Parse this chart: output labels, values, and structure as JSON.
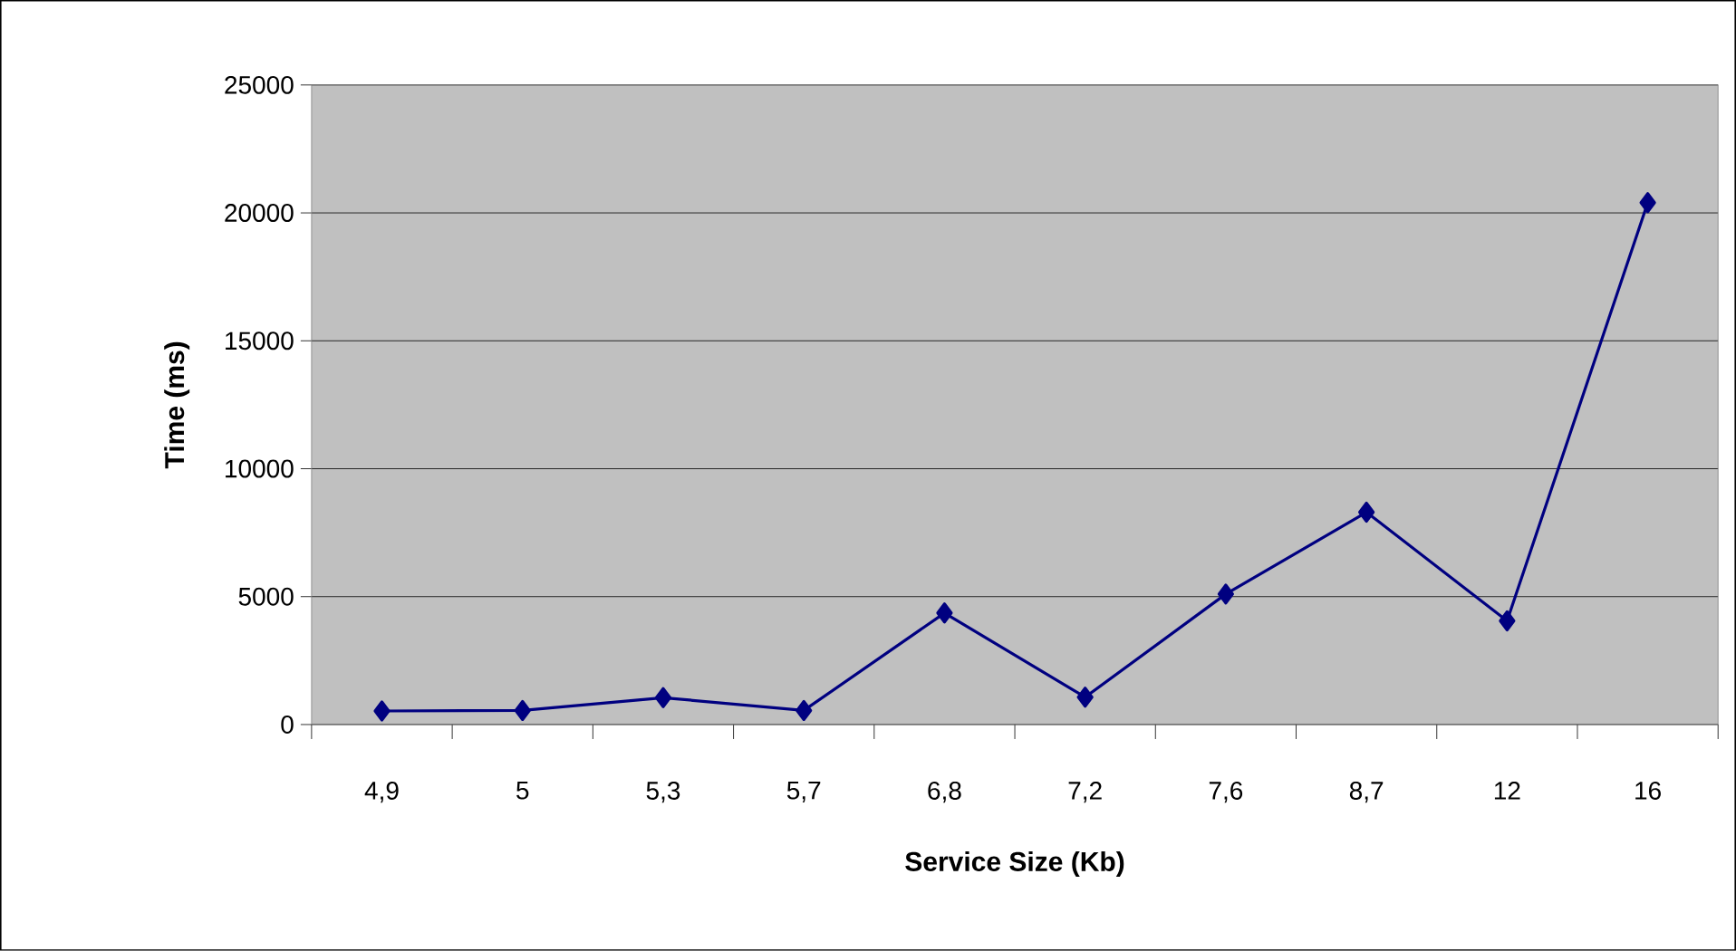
{
  "chart_data": {
    "type": "line",
    "xlabel": "Service Size (Kb)",
    "ylabel": "Time (ms)",
    "categories": [
      "4,9",
      "5",
      "5,3",
      "5,7",
      "6,8",
      "7,2",
      "7,6",
      "8,7",
      "12",
      "16"
    ],
    "series": [
      {
        "color": "#000080",
        "values": [
          530,
          550,
          1050,
          550,
          4360,
          1070,
          5100,
          8300,
          4050,
          20400
        ]
      }
    ],
    "ylim": [
      0,
      25000
    ],
    "yticks": [
      0,
      5000,
      10000,
      15000,
      20000,
      25000
    ],
    "grid": "y",
    "marker": "diamond",
    "line_style": "solid"
  }
}
